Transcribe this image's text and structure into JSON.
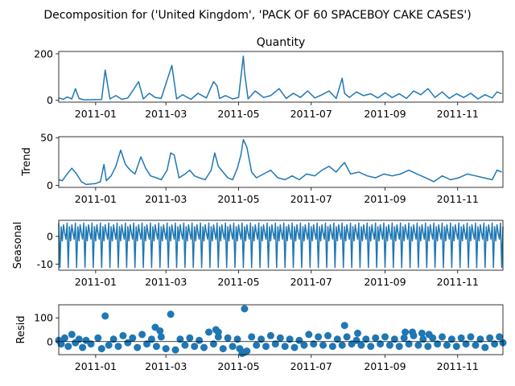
{
  "figure": {
    "suptitle": "Decomposition for ('United Kingdom', 'PACK OF 60 SPACEBOY CAKE CASES')"
  },
  "colors": {
    "line": "#1f77b4",
    "axis": "#000000",
    "background": "#ffffff"
  },
  "chart_data": [
    {
      "type": "line",
      "title": "Quantity",
      "ylabel": "",
      "xlim": [
        "2010-12-01",
        "2011-12-09"
      ],
      "ylim": [
        -8,
        210
      ],
      "yticks": [
        0,
        200
      ],
      "xticks": [
        "2011-01",
        "2011-03",
        "2011-05",
        "2011-07",
        "2011-09",
        "2011-11"
      ],
      "series": [
        {
          "x": [
            "2010-12-01",
            "2010-12-05",
            "2010-12-08",
            "2010-12-12",
            "2010-12-15",
            "2010-12-18",
            "2010-12-22",
            "2011-01-06",
            "2011-01-09",
            "2011-01-13",
            "2011-01-18",
            "2011-01-23",
            "2011-01-28",
            "2011-02-01",
            "2011-02-06",
            "2011-02-10",
            "2011-02-15",
            "2011-02-20",
            "2011-02-25",
            "2011-03-06",
            "2011-03-10",
            "2011-03-15",
            "2011-03-22",
            "2011-03-28",
            "2011-04-04",
            "2011-04-10",
            "2011-04-13",
            "2011-04-15",
            "2011-04-20",
            "2011-04-26",
            "2011-05-01",
            "2011-05-05",
            "2011-05-06",
            "2011-05-09",
            "2011-05-15",
            "2011-05-22",
            "2011-05-28",
            "2011-06-04",
            "2011-06-10",
            "2011-06-16",
            "2011-06-22",
            "2011-06-28",
            "2011-07-04",
            "2011-07-10",
            "2011-07-16",
            "2011-07-22",
            "2011-07-27",
            "2011-07-29",
            "2011-08-02",
            "2011-08-08",
            "2011-08-14",
            "2011-08-20",
            "2011-08-26",
            "2011-09-01",
            "2011-09-07",
            "2011-09-13",
            "2011-09-19",
            "2011-09-25",
            "2011-10-01",
            "2011-10-07",
            "2011-10-13",
            "2011-10-19",
            "2011-10-25",
            "2011-10-31",
            "2011-11-06",
            "2011-11-12",
            "2011-11-18",
            "2011-11-24",
            "2011-11-30",
            "2011-12-04",
            "2011-12-08"
          ],
          "values": [
            10,
            4,
            14,
            6,
            50,
            8,
            2,
            3,
            130,
            6,
            20,
            4,
            10,
            40,
            80,
            6,
            30,
            12,
            8,
            150,
            6,
            24,
            4,
            30,
            10,
            80,
            62,
            8,
            20,
            6,
            12,
            190,
            120,
            6,
            40,
            12,
            20,
            50,
            8,
            30,
            12,
            40,
            10,
            24,
            40,
            8,
            95,
            30,
            12,
            36,
            20,
            28,
            10,
            32,
            12,
            28,
            8,
            40,
            24,
            50,
            12,
            36,
            8,
            28,
            12,
            30,
            6,
            24,
            10,
            36,
            28
          ]
        }
      ]
    },
    {
      "type": "line",
      "title": "",
      "ylabel": "Trend",
      "xlim": [
        "2010-12-01",
        "2011-12-09"
      ],
      "ylim": [
        -2,
        51
      ],
      "yticks": [
        0,
        50
      ],
      "xticks": [
        "2011-01",
        "2011-03",
        "2011-05",
        "2011-07",
        "2011-09",
        "2011-11"
      ],
      "series": [
        {
          "x": [
            "2010-12-01",
            "2010-12-04",
            "2010-12-08",
            "2010-12-12",
            "2010-12-16",
            "2010-12-20",
            "2010-12-24",
            "2011-01-01",
            "2011-01-05",
            "2011-01-08",
            "2011-01-10",
            "2011-01-14",
            "2011-01-18",
            "2011-01-22",
            "2011-01-26",
            "2011-01-30",
            "2011-02-03",
            "2011-02-08",
            "2011-02-12",
            "2011-02-16",
            "2011-02-21",
            "2011-02-25",
            "2011-03-02",
            "2011-03-05",
            "2011-03-08",
            "2011-03-12",
            "2011-03-17",
            "2011-03-21",
            "2011-03-25",
            "2011-03-29",
            "2011-04-03",
            "2011-04-08",
            "2011-04-11",
            "2011-04-14",
            "2011-04-18",
            "2011-04-22",
            "2011-04-26",
            "2011-04-30",
            "2011-05-03",
            "2011-05-05",
            "2011-05-08",
            "2011-05-12",
            "2011-05-16",
            "2011-05-22",
            "2011-05-28",
            "2011-06-03",
            "2011-06-09",
            "2011-06-15",
            "2011-06-21",
            "2011-06-27",
            "2011-07-04",
            "2011-07-10",
            "2011-07-16",
            "2011-07-22",
            "2011-07-26",
            "2011-07-29",
            "2011-08-03",
            "2011-08-10",
            "2011-08-17",
            "2011-08-24",
            "2011-08-31",
            "2011-09-07",
            "2011-09-14",
            "2011-09-21",
            "2011-09-28",
            "2011-10-05",
            "2011-10-12",
            "2011-10-19",
            "2011-10-26",
            "2011-11-02",
            "2011-11-09",
            "2011-11-16",
            "2011-11-23",
            "2011-11-30",
            "2011-12-04",
            "2011-12-08"
          ],
          "values": [
            6,
            5,
            12,
            18,
            12,
            4,
            1,
            2,
            4,
            22,
            5,
            10,
            20,
            37,
            22,
            16,
            12,
            30,
            18,
            10,
            8,
            6,
            16,
            34,
            32,
            8,
            12,
            16,
            10,
            8,
            6,
            16,
            34,
            20,
            14,
            8,
            6,
            18,
            32,
            48,
            40,
            14,
            8,
            12,
            16,
            8,
            6,
            10,
            6,
            12,
            10,
            16,
            20,
            14,
            20,
            24,
            12,
            14,
            10,
            8,
            12,
            10,
            12,
            16,
            12,
            8,
            4,
            10,
            6,
            8,
            12,
            10,
            8,
            6,
            16,
            14
          ]
        }
      ]
    },
    {
      "type": "line",
      "title": "",
      "ylabel": "Seasonal",
      "xlim": [
        "2010-12-01",
        "2011-12-09"
      ],
      "ylim": [
        -12.2,
        5.8
      ],
      "yticks": [
        -10,
        0
      ],
      "xticks": [
        "2011-01",
        "2011-03",
        "2011-05",
        "2011-07",
        "2011-09",
        "2011-11"
      ],
      "period_days": 7,
      "pattern": [
        4.8,
        -11.2,
        3.5,
        -1.6,
        4.2,
        1.2,
        -1.0
      ],
      "start": "2010-12-01",
      "end": "2011-12-09"
    },
    {
      "type": "scatter",
      "title": "",
      "ylabel": "Resid",
      "xlim": [
        "2010-12-01",
        "2011-12-09"
      ],
      "ylim": [
        -55,
        155
      ],
      "yticks": [
        0,
        100
      ],
      "xticks": [
        "2011-01",
        "2011-03",
        "2011-05",
        "2011-07",
        "2011-09",
        "2011-11"
      ],
      "series": [
        {
          "x": [
            "2010-12-01",
            "2010-12-03",
            "2010-12-06",
            "2010-12-09",
            "2010-12-12",
            "2010-12-15",
            "2010-12-18",
            "2010-12-21",
            "2010-12-24",
            "2010-12-28",
            "2011-01-03",
            "2011-01-06",
            "2011-01-09",
            "2011-01-12",
            "2011-01-16",
            "2011-01-20",
            "2011-01-24",
            "2011-01-28",
            "2011-02-01",
            "2011-02-05",
            "2011-02-09",
            "2011-02-13",
            "2011-02-17",
            "2011-02-21",
            "2011-02-25",
            "2011-03-01",
            "2011-03-05",
            "2011-03-09",
            "2011-03-13",
            "2011-03-17",
            "2011-03-21",
            "2011-03-25",
            "2011-03-29",
            "2011-04-02",
            "2011-04-06",
            "2011-04-10",
            "2011-04-14",
            "2011-04-18",
            "2011-04-22",
            "2011-04-26",
            "2011-04-30",
            "2011-05-04",
            "2011-05-06",
            "2011-05-08",
            "2011-05-12",
            "2011-05-16",
            "2011-05-20",
            "2011-05-24",
            "2011-05-28",
            "2011-06-01",
            "2011-06-05",
            "2011-06-09",
            "2011-06-13",
            "2011-06-17",
            "2011-06-21",
            "2011-06-25",
            "2011-06-29",
            "2011-07-03",
            "2011-07-07",
            "2011-07-11",
            "2011-07-15",
            "2011-07-19",
            "2011-07-23",
            "2011-07-27",
            "2011-07-31",
            "2011-08-04",
            "2011-08-08",
            "2011-08-12",
            "2011-08-16",
            "2011-08-20",
            "2011-08-24",
            "2011-08-28",
            "2011-09-01",
            "2011-09-05",
            "2011-09-09",
            "2011-09-13",
            "2011-09-17",
            "2011-09-21",
            "2011-09-25",
            "2011-09-29",
            "2011-10-03",
            "2011-10-07",
            "2011-10-11",
            "2011-10-15",
            "2011-10-19",
            "2011-10-23",
            "2011-10-27",
            "2011-10-31",
            "2011-11-04",
            "2011-11-08",
            "2011-11-12",
            "2011-11-16",
            "2011-11-20",
            "2011-11-24",
            "2011-11-28",
            "2011-12-02",
            "2011-12-06",
            "2011-12-09",
            "2011-02-20",
            "2011-02-24",
            "2011-04-12",
            "2011-04-14",
            "2011-05-06",
            "2011-07-29",
            "2011-08-09",
            "2011-09-18",
            "2011-09-24",
            "2011-10-02",
            "2011-10-08",
            "2011-05-02"
          ],
          "values": [
            5,
            -10,
            15,
            -20,
            30,
            -5,
            10,
            -25,
            5,
            -10,
            15,
            -30,
            108,
            -15,
            10,
            -20,
            25,
            -5,
            15,
            -25,
            30,
            -10,
            10,
            -20,
            20,
            -30,
            115,
            -35,
            10,
            -15,
            15,
            -20,
            5,
            -25,
            40,
            -10,
            20,
            -30,
            15,
            -20,
            10,
            -50,
            138,
            -40,
            20,
            -15,
            10,
            -20,
            25,
            -10,
            15,
            -20,
            10,
            -25,
            5,
            -15,
            30,
            -10,
            20,
            -15,
            25,
            -20,
            10,
            -15,
            20,
            -10,
            5,
            -15,
            10,
            -20,
            15,
            -10,
            20,
            -15,
            10,
            -20,
            15,
            -10,
            25,
            -15,
            10,
            -20,
            15,
            -10,
            20,
            -15,
            10,
            -20,
            15,
            -10,
            20,
            -15,
            10,
            -25,
            15,
            -10,
            20,
            -5,
            60,
            45,
            50,
            40,
            -45,
            68,
            35,
            40,
            40,
            35,
            30,
            -30
          ]
        }
      ]
    }
  ]
}
